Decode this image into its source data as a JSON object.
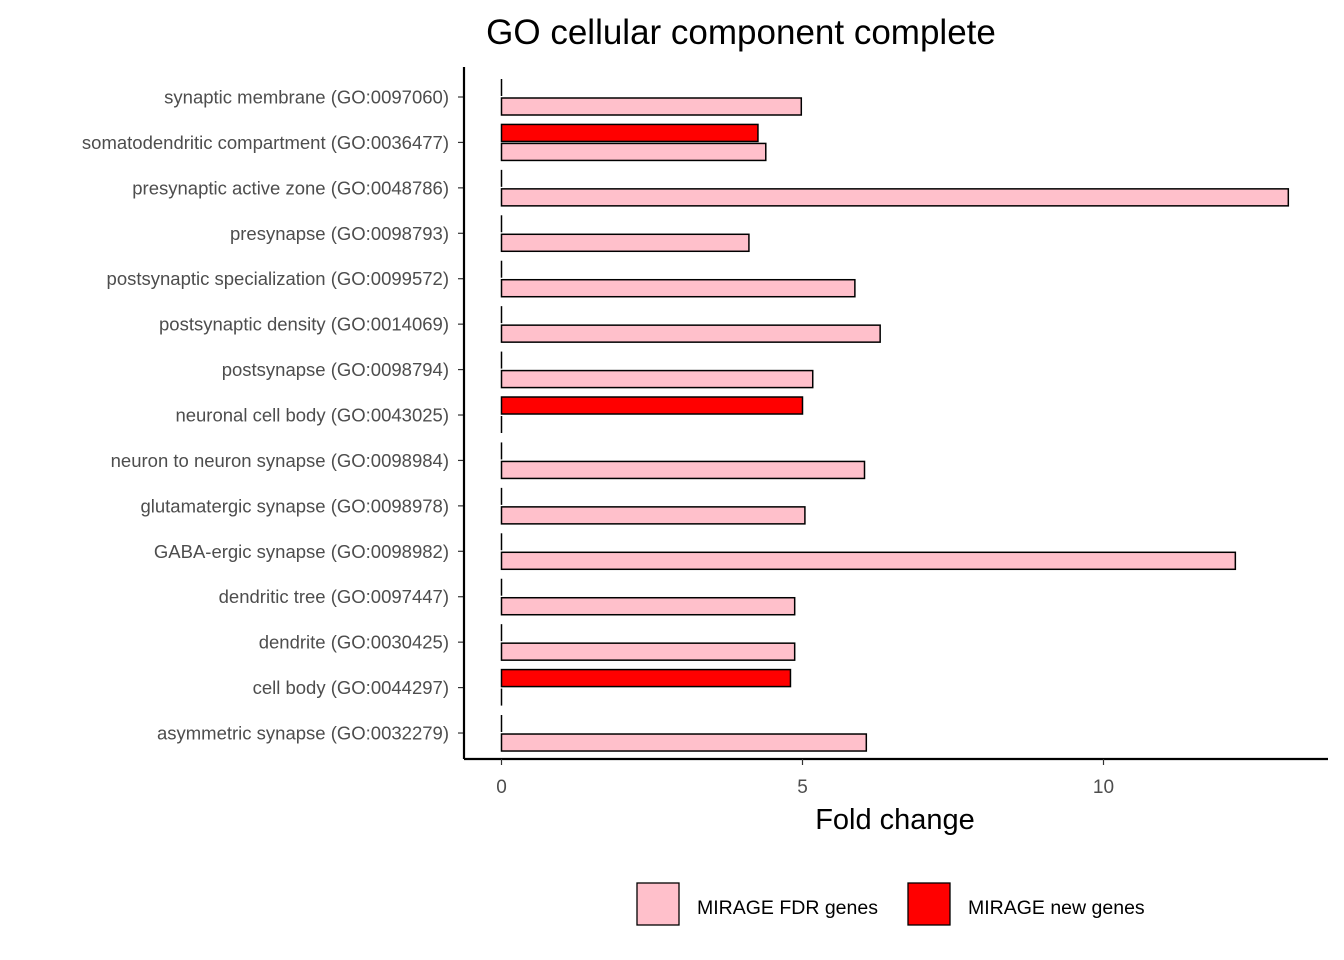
{
  "chart_data": {
    "type": "bar",
    "orientation": "horizontal",
    "title": "GO cellular component complete",
    "xlabel": "Fold change",
    "ylabel": "",
    "xlim": [
      -0.6,
      13.75
    ],
    "xticks": [
      0,
      5,
      10
    ],
    "grid": false,
    "legend_position": "bottom",
    "categories": [
      "synaptic membrane (GO:0097060)",
      "somatodendritic compartment (GO:0036477)",
      "presynaptic active zone (GO:0048786)",
      "presynapse (GO:0098793)",
      "postsynaptic specialization (GO:0099572)",
      "postsynaptic density (GO:0014069)",
      "postsynapse (GO:0098794)",
      "neuronal cell body (GO:0043025)",
      "neuron to neuron synapse (GO:0098984)",
      "glutamatergic synapse (GO:0098978)",
      "GABA-ergic synapse (GO:0098982)",
      "dendritic tree (GO:0097447)",
      "dendrite (GO:0030425)",
      "cell body (GO:0044297)",
      "asymmetric synapse (GO:0032279)"
    ],
    "series": [
      {
        "name": "MIRAGE FDR genes",
        "color": "#FFC0CB",
        "values": [
          4.98,
          4.39,
          13.07,
          4.11,
          5.87,
          6.29,
          5.17,
          0,
          6.03,
          5.04,
          12.19,
          4.87,
          4.87,
          0,
          6.06
        ]
      },
      {
        "name": "MIRAGE new genes",
        "color": "#FF0000",
        "values": [
          0,
          4.26,
          0,
          0,
          0,
          0,
          0,
          5.0,
          0,
          0,
          0,
          0,
          0,
          4.8,
          0
        ]
      }
    ]
  }
}
